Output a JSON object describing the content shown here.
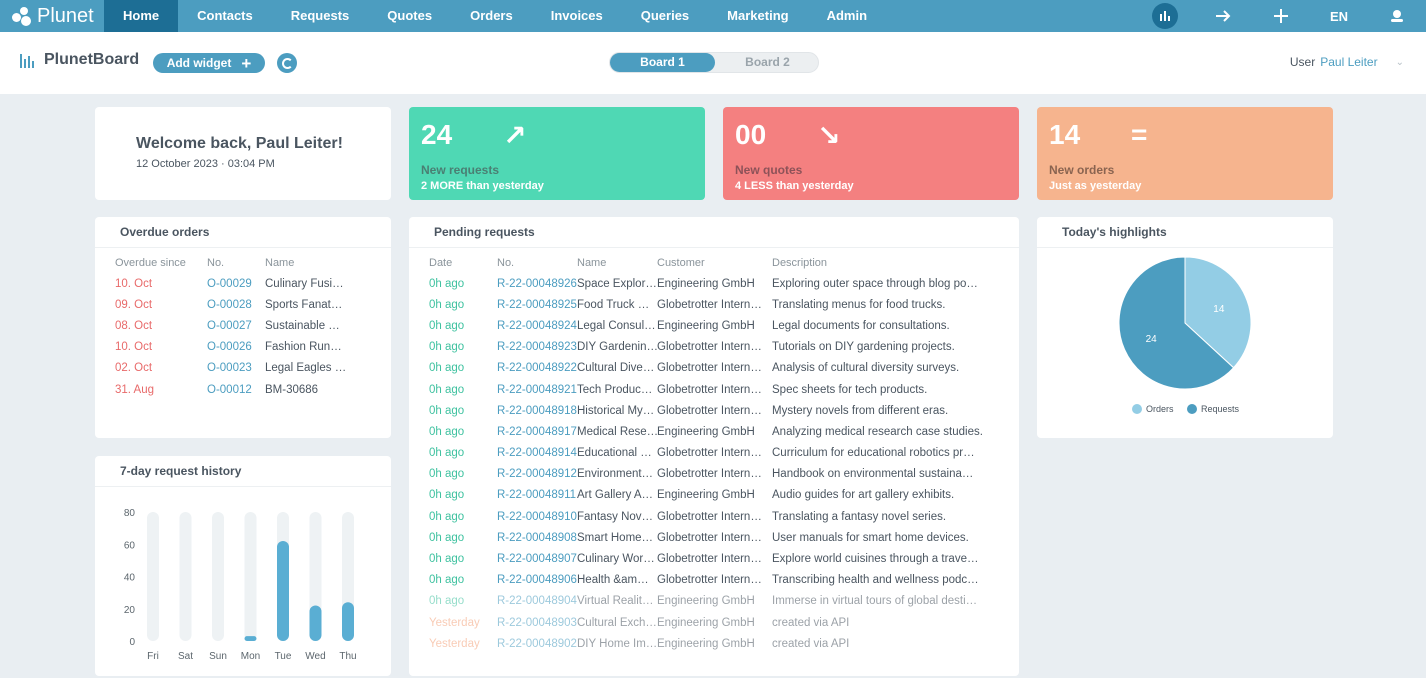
{
  "app": {
    "logo_text": "Plunet"
  },
  "nav": {
    "items": [
      "Home",
      "Contacts",
      "Requests",
      "Quotes",
      "Orders",
      "Invoices",
      "Queries",
      "Marketing",
      "Admin"
    ],
    "language": "EN"
  },
  "header": {
    "title": "PlunetBoard",
    "add_widget_label": "Add widget",
    "boards": [
      "Board 1",
      "Board 2"
    ],
    "user_label": "User",
    "user_name": "Paul Leiter"
  },
  "welcome": {
    "greeting": "Welcome back, Paul Leiter!",
    "datetime": "12 October 2023 · 03:04 PM"
  },
  "stats": [
    {
      "value": "24",
      "symbol": "↗",
      "label": "New requests",
      "sub": "2 MORE than yesterday",
      "color": "#4fd8b4"
    },
    {
      "value": "00",
      "symbol": "↘",
      "label": "New quotes",
      "sub": "4 LESS than yesterday",
      "color": "#f48080"
    },
    {
      "value": "14",
      "symbol": "=",
      "label": "New orders",
      "sub": "Just as yesterday",
      "color": "#f6b48e"
    }
  ],
  "overdue": {
    "title": "Overdue orders",
    "columns": [
      "Overdue since",
      "No.",
      "Name"
    ],
    "rows": [
      [
        "10. Oct",
        "O-00029",
        "Culinary Fusi…"
      ],
      [
        "09. Oct",
        "O-00028",
        "Sports Fanat…"
      ],
      [
        "08. Oct",
        "O-00027",
        "Sustainable …"
      ],
      [
        "10. Oct",
        "O-00026",
        "Fashion Run…"
      ],
      [
        "02. Oct",
        "O-00023",
        "Legal Eagles …"
      ],
      [
        "31. Aug",
        "O-00012",
        "BM-30686"
      ]
    ]
  },
  "pending": {
    "title": "Pending requests",
    "columns": [
      "Date",
      "No.",
      "Name",
      "Customer",
      "Description"
    ],
    "rows": [
      [
        "0h ago",
        "R-22-00048926",
        "Space Explor…",
        "Engineering GmbH",
        "Exploring outer space through blog po…"
      ],
      [
        "0h ago",
        "R-22-00048925",
        "Food Truck …",
        "Globetrotter Intern…",
        "Translating menus for food trucks."
      ],
      [
        "0h ago",
        "R-22-00048924",
        "Legal Consul…",
        "Engineering GmbH",
        "Legal documents for consultations."
      ],
      [
        "0h ago",
        "R-22-00048923",
        "DIY Gardenin…",
        "Globetrotter Intern…",
        "Tutorials on DIY gardening projects."
      ],
      [
        "0h ago",
        "R-22-00048922",
        "Cultural Dive…",
        "Globetrotter Intern…",
        "Analysis of cultural diversity surveys."
      ],
      [
        "0h ago",
        "R-22-00048921",
        "Tech Produc…",
        "Globetrotter Intern…",
        "Spec sheets for tech products."
      ],
      [
        "0h ago",
        "R-22-00048918",
        "Historical My…",
        "Globetrotter Intern…",
        "Mystery novels from different eras."
      ],
      [
        "0h ago",
        "R-22-00048917",
        "Medical Rese…",
        "Engineering GmbH",
        "Analyzing medical research case studies."
      ],
      [
        "0h ago",
        "R-22-00048914",
        "Educational …",
        "Globetrotter Intern…",
        "Curriculum for educational robotics pr…"
      ],
      [
        "0h ago",
        "R-22-00048912",
        "Environment…",
        "Globetrotter Intern…",
        "Handbook on environmental sustaina…"
      ],
      [
        "0h ago",
        "R-22-00048911",
        "Art Gallery A…",
        "Engineering GmbH",
        "Audio guides for art gallery exhibits."
      ],
      [
        "0h ago",
        "R-22-00048910",
        "Fantasy Nov…",
        "Globetrotter Intern…",
        "Translating a fantasy novel series."
      ],
      [
        "0h ago",
        "R-22-00048908",
        "Smart Home…",
        "Globetrotter Intern…",
        "User manuals for smart home devices."
      ],
      [
        "0h ago",
        "R-22-00048907",
        "Culinary Wor…",
        "Globetrotter Intern…",
        "Explore world cuisines through a trave…"
      ],
      [
        "0h ago",
        "R-22-00048906",
        "Health &am…",
        "Globetrotter Intern…",
        "Transcribing health and wellness podc…"
      ],
      [
        "0h ago",
        "R-22-00048904",
        "Virtual Realit…",
        "Engineering GmbH",
        "Immerse in virtual tours of global desti…"
      ],
      [
        "Yesterday",
        "R-22-00048903",
        "Cultural Exch…",
        "Engineering GmbH",
        "created via API"
      ],
      [
        "Yesterday",
        "R-22-00048902",
        "DIY Home Im…",
        "Engineering GmbH",
        "created via API"
      ]
    ]
  },
  "highlights": {
    "title": "Today's highlights",
    "legend": [
      "Orders",
      "Requests"
    ]
  },
  "history": {
    "title": "7-day request history"
  },
  "chart_data": [
    {
      "type": "bar",
      "title": "7-day request history",
      "categories": [
        "Fri",
        "Sat",
        "Sun",
        "Mon",
        "Tue",
        "Wed",
        "Thu"
      ],
      "values": [
        0,
        0,
        0,
        3,
        62,
        22,
        24
      ],
      "ylim": [
        0,
        80
      ],
      "yticks": [
        0,
        20,
        40,
        60,
        80
      ],
      "bar_color": "#5aaed3",
      "track_color": "#eef2f4"
    },
    {
      "type": "pie",
      "title": "Today's highlights",
      "labels": [
        "Orders",
        "Requests"
      ],
      "values": [
        14,
        24
      ],
      "colors": [
        "#93cde5",
        "#4c9dc0"
      ]
    }
  ]
}
